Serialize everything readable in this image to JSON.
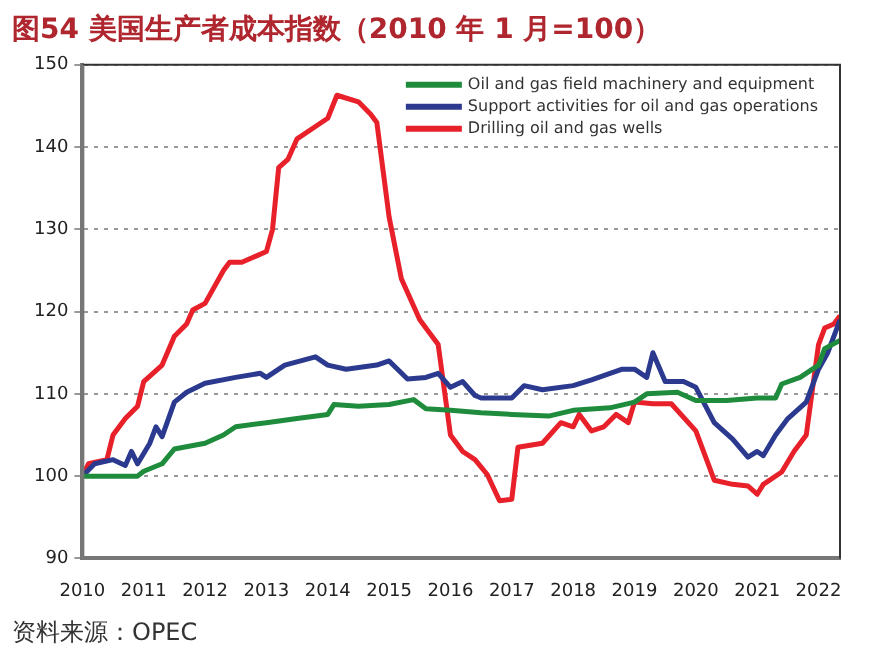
{
  "chart_data": {
    "type": "line",
    "title": "图54  美国生产者成本指数（2010 年 1 月=100）",
    "annotations": [
      "资料来源：OPEC"
    ],
    "xlim": [
      2010,
      2022.35
    ],
    "xticks": [
      2010,
      2011,
      2012,
      2013,
      2014,
      2015,
      2016,
      2017,
      2018,
      2019,
      2020,
      2021,
      2022
    ],
    "ylim": [
      90,
      150
    ],
    "yticks": [
      90,
      100,
      110,
      120,
      130,
      140,
      150
    ],
    "grid": "y",
    "legend": "top right",
    "marker": "none",
    "line_style": "solid",
    "series": [
      {
        "name": "Oil and gas field machinery and equipment",
        "color": "#1e8c3c",
        "x": [
          2010,
          2010.5,
          2010.9,
          2011,
          2011.3,
          2011.5,
          2012,
          2012.3,
          2012.5,
          2013,
          2013.5,
          2014,
          2014.1,
          2014.5,
          2015,
          2015.4,
          2015.6,
          2016,
          2016.5,
          2017,
          2017.6,
          2018,
          2018.6,
          2019,
          2019.2,
          2019.7,
          2020,
          2020.5,
          2021,
          2021.3,
          2021.4,
          2021.7,
          2022,
          2022.1,
          2022.35
        ],
        "values": [
          100,
          100,
          100,
          100.6,
          101.5,
          103.3,
          104,
          105,
          106,
          106.5,
          107,
          107.5,
          108.7,
          108.5,
          108.7,
          109.3,
          108.2,
          108,
          107.7,
          107.5,
          107.3,
          108,
          108.3,
          109,
          110,
          110.2,
          109.2,
          109.2,
          109.5,
          109.5,
          111.2,
          112,
          113.5,
          115.5,
          116.5
        ]
      },
      {
        "name": "Support activities for oil and gas operations",
        "color": "#2b3a8f",
        "x": [
          2010,
          2010.2,
          2010.5,
          2010.7,
          2010.8,
          2010.9,
          2011.1,
          2011.2,
          2011.3,
          2011.5,
          2011.7,
          2012,
          2012.5,
          2012.9,
          2013,
          2013.3,
          2013.8,
          2014,
          2014.3,
          2014.8,
          2015,
          2015.3,
          2015.6,
          2015.8,
          2016,
          2016.2,
          2016.4,
          2016.5,
          2017,
          2017.2,
          2017.5,
          2018,
          2018.3,
          2018.8,
          2019,
          2019.2,
          2019.3,
          2019.5,
          2019.8,
          2020,
          2020.3,
          2020.6,
          2020.85,
          2021,
          2021.1,
          2021.3,
          2021.5,
          2021.8,
          2022,
          2022.15,
          2022.25,
          2022.35
        ],
        "values": [
          100,
          101.5,
          102,
          101.3,
          103,
          101.5,
          104,
          106,
          104.8,
          109,
          110.2,
          111.3,
          112,
          112.5,
          112,
          113.5,
          114.5,
          113.5,
          113,
          113.5,
          114,
          111.8,
          112,
          112.5,
          110.8,
          111.5,
          109.8,
          109.5,
          109.5,
          111,
          110.5,
          111,
          111.7,
          113,
          113,
          112,
          115,
          111.5,
          111.5,
          110.8,
          106.5,
          104.5,
          102.3,
          103,
          102.5,
          105,
          107,
          109,
          113,
          115,
          117,
          119
        ]
      },
      {
        "name": "Drilling oil and gas wells",
        "color": "#e8202a",
        "x": [
          2010,
          2010.1,
          2010.4,
          2010.5,
          2010.7,
          2010.9,
          2011,
          2011.3,
          2011.5,
          2011.7,
          2011.8,
          2012,
          2012.3,
          2012.4,
          2012.6,
          2013,
          2013.1,
          2013.2,
          2013.35,
          2013.5,
          2013.8,
          2014,
          2014.15,
          2014.5,
          2014.7,
          2014.8,
          2015,
          2015.2,
          2015.5,
          2015.8,
          2016,
          2016.2,
          2016.4,
          2016.6,
          2016.8,
          2017,
          2017.1,
          2017.5,
          2017.8,
          2018,
          2018.1,
          2018.3,
          2018.5,
          2018.7,
          2018.9,
          2019,
          2019.3,
          2019.6,
          2020,
          2020.3,
          2020.6,
          2020.85,
          2021,
          2021.1,
          2021.4,
          2021.6,
          2021.8,
          2022,
          2022.1,
          2022.25,
          2022.35
        ],
        "values": [
          100,
          101.5,
          102,
          105,
          107,
          108.5,
          111.5,
          113.5,
          117,
          118.5,
          120.2,
          121,
          125,
          126,
          126,
          127.3,
          130,
          137.5,
          138.5,
          141,
          142.5,
          143.5,
          146.3,
          145.5,
          144,
          143,
          131.5,
          124,
          119,
          116,
          105,
          103,
          102,
          100.2,
          97,
          97.2,
          103.5,
          104,
          106.5,
          106,
          107.5,
          105.5,
          106,
          107.5,
          106.5,
          109,
          108.8,
          108.8,
          105.5,
          99.5,
          99,
          98.8,
          97.8,
          99,
          100.5,
          103,
          105,
          116,
          118,
          118.5,
          119.5
        ]
      }
    ]
  }
}
